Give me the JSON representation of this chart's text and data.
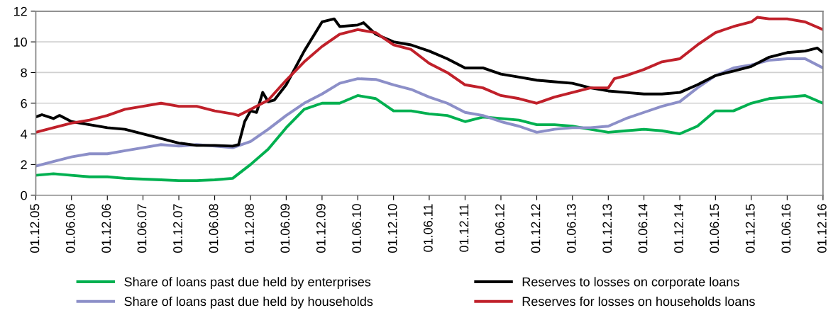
{
  "chart_data": {
    "type": "line",
    "ylim": [
      0,
      12
    ],
    "yticks": [
      0,
      2,
      4,
      6,
      8,
      10,
      12
    ],
    "xlim": [
      "2005-12-01",
      "2016-12-01"
    ],
    "xticks": [
      {
        "value": "2005-12-01",
        "label": "01.12.05"
      },
      {
        "value": "2006-06-01",
        "label": "01.06.06"
      },
      {
        "value": "2006-12-01",
        "label": "01.12.06"
      },
      {
        "value": "2007-06-01",
        "label": "01.06.07"
      },
      {
        "value": "2007-12-01",
        "label": "01.12.07"
      },
      {
        "value": "2008-06-01",
        "label": "01.06.08"
      },
      {
        "value": "2008-12-01",
        "label": "01.12.08"
      },
      {
        "value": "2009-06-01",
        "label": "01.06.09"
      },
      {
        "value": "2009-12-01",
        "label": "01.12.09"
      },
      {
        "value": "2010-06-01",
        "label": "01.06.10"
      },
      {
        "value": "2010-12-01",
        "label": "01.12.10"
      },
      {
        "value": "2011-06-01",
        "label": "01.06.11"
      },
      {
        "value": "2011-12-01",
        "label": "01.12.11"
      },
      {
        "value": "2012-06-01",
        "label": "01.06.12"
      },
      {
        "value": "2012-12-01",
        "label": "01.12.12"
      },
      {
        "value": "2013-06-01",
        "label": "01.06.13"
      },
      {
        "value": "2013-12-01",
        "label": "01.12.13"
      },
      {
        "value": "2014-06-01",
        "label": "01.06.14"
      },
      {
        "value": "2014-12-01",
        "label": "01.12.14"
      },
      {
        "value": "2015-06-01",
        "label": "01.06.15"
      },
      {
        "value": "2015-12-01",
        "label": "01.12.15"
      },
      {
        "value": "2016-06-01",
        "label": "01.06.16"
      },
      {
        "value": "2016-12-01",
        "label": "01.12.16"
      }
    ],
    "grid": "y",
    "legend": "bottom",
    "marker": "none",
    "line_style": "solid",
    "series": [
      {
        "name": "Share of loans past due held by enterprises",
        "color": "#00b050",
        "x": [
          "2005-12-01",
          "2006-03-01",
          "2006-06-01",
          "2006-09-01",
          "2006-12-01",
          "2007-03-01",
          "2007-06-01",
          "2007-09-01",
          "2007-12-01",
          "2008-03-01",
          "2008-06-01",
          "2008-09-01",
          "2008-12-01",
          "2009-03-01",
          "2009-06-01",
          "2009-09-01",
          "2009-12-01",
          "2010-03-01",
          "2010-06-01",
          "2010-09-01",
          "2010-12-01",
          "2011-03-01",
          "2011-06-01",
          "2011-09-01",
          "2011-12-01",
          "2012-03-01",
          "2012-06-01",
          "2012-09-01",
          "2012-12-01",
          "2013-03-01",
          "2013-06-01",
          "2013-09-01",
          "2013-12-01",
          "2014-03-01",
          "2014-06-01",
          "2014-09-01",
          "2014-12-01",
          "2015-03-01",
          "2015-06-01",
          "2015-09-01",
          "2015-12-01",
          "2016-03-01",
          "2016-06-01",
          "2016-09-01",
          "2016-12-01"
        ],
        "values": [
          1.3,
          1.4,
          1.3,
          1.2,
          1.2,
          1.1,
          1.05,
          1.0,
          0.95,
          0.95,
          1.0,
          1.1,
          2.0,
          3.0,
          4.4,
          5.6,
          6.0,
          6.0,
          6.5,
          6.3,
          5.5,
          5.5,
          5.3,
          5.2,
          4.8,
          5.1,
          5.0,
          4.9,
          4.6,
          4.6,
          4.5,
          4.3,
          4.1,
          4.2,
          4.3,
          4.2,
          4.0,
          4.5,
          5.5,
          5.5,
          6.0,
          6.3,
          6.4,
          6.5,
          6.0
        ]
      },
      {
        "name": "Share of loans past due held by households",
        "color": "#8c8fc8",
        "x": [
          "2005-12-01",
          "2006-03-01",
          "2006-06-01",
          "2006-09-01",
          "2006-12-01",
          "2007-03-01",
          "2007-06-01",
          "2007-09-01",
          "2007-12-01",
          "2008-03-01",
          "2008-06-01",
          "2008-09-01",
          "2008-12-01",
          "2009-03-01",
          "2009-06-01",
          "2009-09-01",
          "2009-12-01",
          "2010-03-01",
          "2010-06-01",
          "2010-09-01",
          "2010-12-01",
          "2011-03-01",
          "2011-06-01",
          "2011-09-01",
          "2011-12-01",
          "2012-03-01",
          "2012-06-01",
          "2012-09-01",
          "2012-12-01",
          "2013-03-01",
          "2013-06-01",
          "2013-09-01",
          "2013-12-01",
          "2014-03-01",
          "2014-06-01",
          "2014-09-01",
          "2014-12-01",
          "2015-03-01",
          "2015-06-01",
          "2015-09-01",
          "2015-12-01",
          "2016-03-01",
          "2016-06-01",
          "2016-09-01",
          "2016-12-01"
        ],
        "values": [
          1.9,
          2.2,
          2.5,
          2.7,
          2.7,
          2.9,
          3.1,
          3.3,
          3.2,
          3.3,
          3.2,
          3.1,
          3.5,
          4.3,
          5.2,
          6.0,
          6.6,
          7.3,
          7.6,
          7.55,
          7.2,
          6.9,
          6.4,
          6.0,
          5.4,
          5.2,
          4.8,
          4.5,
          4.1,
          4.3,
          4.4,
          4.4,
          4.5,
          5.0,
          5.4,
          5.8,
          6.1,
          7.0,
          7.8,
          8.3,
          8.5,
          8.8,
          8.9,
          8.9,
          8.3
        ]
      },
      {
        "name": "Reserves to losses on corporate loans",
        "color": "#000000",
        "x": [
          "2005-12-01",
          "2006-01-01",
          "2006-03-01",
          "2006-04-01",
          "2006-06-01",
          "2006-09-01",
          "2006-12-01",
          "2007-03-01",
          "2007-06-01",
          "2007-09-01",
          "2007-12-01",
          "2008-03-01",
          "2008-06-01",
          "2008-09-01",
          "2008-10-01",
          "2008-11-01",
          "2008-12-01",
          "2009-01-01",
          "2009-02-01",
          "2009-03-01",
          "2009-04-01",
          "2009-06-01",
          "2009-09-01",
          "2009-12-01",
          "2010-02-01",
          "2010-03-01",
          "2010-06-01",
          "2010-07-01",
          "2010-09-01",
          "2010-12-01",
          "2011-03-01",
          "2011-06-01",
          "2011-09-01",
          "2011-12-01",
          "2012-03-01",
          "2012-06-01",
          "2012-09-01",
          "2012-12-01",
          "2013-03-01",
          "2013-06-01",
          "2013-09-01",
          "2013-12-01",
          "2014-03-01",
          "2014-06-01",
          "2014-09-01",
          "2014-12-01",
          "2015-03-01",
          "2015-06-01",
          "2015-09-01",
          "2015-12-01",
          "2016-03-01",
          "2016-06-01",
          "2016-09-01",
          "2016-11-01",
          "2016-12-01"
        ],
        "values": [
          5.1,
          5.25,
          5.0,
          5.2,
          4.8,
          4.6,
          4.4,
          4.3,
          4.0,
          3.7,
          3.4,
          3.25,
          3.25,
          3.2,
          3.3,
          4.8,
          5.5,
          5.4,
          6.7,
          6.1,
          6.2,
          7.2,
          9.4,
          11.3,
          11.5,
          11.0,
          11.1,
          11.25,
          10.5,
          10.0,
          9.8,
          9.4,
          8.9,
          8.3,
          8.3,
          7.9,
          7.7,
          7.5,
          7.4,
          7.3,
          7.0,
          6.8,
          6.7,
          6.6,
          6.6,
          6.7,
          7.2,
          7.8,
          8.1,
          8.4,
          9.0,
          9.3,
          9.4,
          9.6,
          9.3
        ]
      },
      {
        "name": "Reserves for losses on households loans",
        "color": "#c0202a",
        "x": [
          "2005-12-01",
          "2006-03-01",
          "2006-06-01",
          "2006-09-01",
          "2006-12-01",
          "2007-03-01",
          "2007-06-01",
          "2007-09-01",
          "2007-12-01",
          "2008-03-01",
          "2008-06-01",
          "2008-09-01",
          "2008-10-01",
          "2008-12-01",
          "2009-03-01",
          "2009-06-01",
          "2009-09-01",
          "2009-12-01",
          "2010-03-01",
          "2010-06-01",
          "2010-09-01",
          "2010-12-01",
          "2011-03-01",
          "2011-06-01",
          "2011-09-01",
          "2011-12-01",
          "2012-03-01",
          "2012-06-01",
          "2012-09-01",
          "2012-12-01",
          "2013-03-01",
          "2013-06-01",
          "2013-09-01",
          "2013-12-01",
          "2014-01-01",
          "2014-03-01",
          "2014-06-01",
          "2014-09-01",
          "2014-12-01",
          "2015-03-01",
          "2015-06-01",
          "2015-09-01",
          "2015-12-01",
          "2016-01-01",
          "2016-03-01",
          "2016-06-01",
          "2016-09-01",
          "2016-12-01"
        ],
        "values": [
          4.1,
          4.4,
          4.7,
          4.9,
          5.2,
          5.6,
          5.8,
          6.0,
          5.8,
          5.8,
          5.5,
          5.3,
          5.2,
          5.6,
          6.2,
          7.5,
          8.7,
          9.7,
          10.5,
          10.8,
          10.6,
          9.8,
          9.5,
          8.6,
          8.0,
          7.2,
          7.0,
          6.5,
          6.3,
          6.0,
          6.4,
          6.7,
          7.0,
          7.0,
          7.6,
          7.8,
          8.2,
          8.7,
          8.9,
          9.8,
          10.6,
          11.0,
          11.3,
          11.6,
          11.5,
          11.5,
          11.3,
          10.8
        ]
      }
    ]
  }
}
